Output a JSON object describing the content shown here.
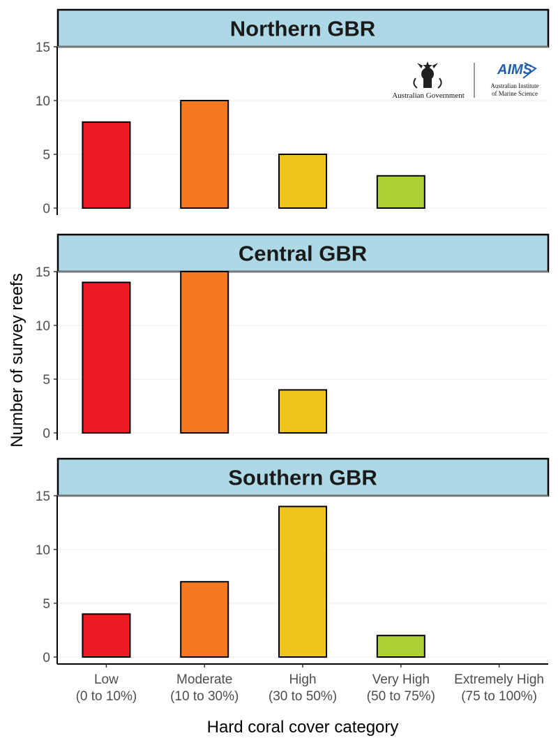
{
  "chart_data": {
    "type": "bar",
    "xlabel": "Hard coral cover category",
    "ylabel": "Number of survey reefs",
    "ylim": [
      0,
      15.5
    ],
    "yticks": [
      0,
      5,
      10,
      15
    ],
    "grid": "horizontal major gridlines",
    "categories": [
      {
        "line1": "Low",
        "line2": "(0 to 10%)"
      },
      {
        "line1": "Moderate",
        "line2": "(10 to 30%)"
      },
      {
        "line1": "High",
        "line2": "(30 to 50%)"
      },
      {
        "line1": "Very High",
        "line2": "(50 to 75%)"
      },
      {
        "line1": "Extremely High",
        "line2": "(75 to 100%)"
      }
    ],
    "category_colors": [
      "#ED1C24",
      "#F47920",
      "#F0C419",
      "#ADD033",
      "#3DB54A"
    ],
    "panels": [
      {
        "title": "Northern GBR",
        "values": [
          8,
          10,
          5,
          3,
          0
        ]
      },
      {
        "title": "Central GBR",
        "values": [
          14,
          15,
          4,
          0,
          0
        ]
      },
      {
        "title": "Southern GBR",
        "values": [
          4,
          7,
          14,
          2,
          0
        ]
      }
    ]
  },
  "logos": {
    "government": "Australian Government",
    "aims_line1": "Australian Institute",
    "aims_line2": "of Marine Science",
    "aims_mark": "AIMS",
    "aims_color": "#1F5FA8"
  },
  "colors": {
    "strip_fill": "#ADD8E6",
    "grid": "#EBEBEB",
    "bar_stroke": "#000000"
  }
}
